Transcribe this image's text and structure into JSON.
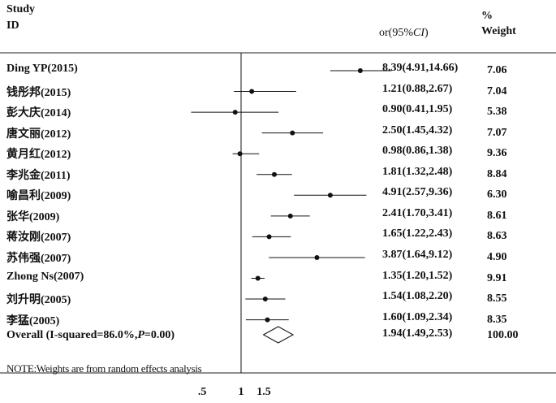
{
  "chart_data": {
    "type": "forest",
    "headers": {
      "study_line1": "Study",
      "study_line2": "ID",
      "effect": "or(95%CI)",
      "weight_line1": "%",
      "weight_line2": "Weight"
    },
    "null_value": 1,
    "x_scale": "log",
    "x_range": [
      0.4,
      14.66
    ],
    "x_ticks": [
      {
        "value": 0.5,
        "label": ".5"
      },
      {
        "value": 1,
        "label": "1"
      },
      {
        "value": 1.5,
        "label": "1.5"
      }
    ],
    "studies": [
      {
        "label": "Ding YP(2015)",
        "or": 8.39,
        "lo": 4.91,
        "hi": 14.66,
        "ci_text": "8.39(4.91,14.66)",
        "weight": "7.06"
      },
      {
        "label": "钱彤邦(2015)",
        "or": 1.21,
        "lo": 0.88,
        "hi": 2.67,
        "ci_text": "1.21(0.88,2.67)",
        "weight": "7.04"
      },
      {
        "label": "彭大庆(2014)",
        "or": 0.9,
        "lo": 0.41,
        "hi": 1.95,
        "ci_text": "0.90(0.41,1.95)",
        "weight": "5.38"
      },
      {
        "label": "唐文丽(2012)",
        "or": 2.5,
        "lo": 1.45,
        "hi": 4.32,
        "ci_text": "2.50(1.45,4.32)",
        "weight": "7.07"
      },
      {
        "label": "黄月红(2012)",
        "or": 0.98,
        "lo": 0.86,
        "hi": 1.38,
        "ci_text": "0.98(0.86,1.38)",
        "weight": "9.36"
      },
      {
        "label": "李兆金(2011)",
        "or": 1.81,
        "lo": 1.32,
        "hi": 2.48,
        "ci_text": "1.81(1.32,2.48)",
        "weight": "8.84"
      },
      {
        "label": "喻昌利(2009)",
        "or": 4.91,
        "lo": 2.57,
        "hi": 9.36,
        "ci_text": "4.91(2.57,9.36)",
        "weight": "6.30"
      },
      {
        "label": "张华(2009)",
        "or": 2.41,
        "lo": 1.7,
        "hi": 3.41,
        "ci_text": "2.41(1.70,3.41)",
        "weight": "8.61"
      },
      {
        "label": "蒋汝刚(2007)",
        "or": 1.65,
        "lo": 1.22,
        "hi": 2.43,
        "ci_text": "1.65(1.22,2.43)",
        "weight": "8.63"
      },
      {
        "label": "苏伟强(2007)",
        "or": 3.87,
        "lo": 1.64,
        "hi": 9.12,
        "ci_text": "3.87(1.64,9.12)",
        "weight": "4.90"
      },
      {
        "label": "Zhong Ns(2007)",
        "or": 1.35,
        "lo": 1.2,
        "hi": 1.52,
        "ci_text": "1.35(1.20,1.52)",
        "weight": "9.91"
      },
      {
        "label": "刘升明(2005)",
        "or": 1.54,
        "lo": 1.08,
        "hi": 2.2,
        "ci_text": "1.54(1.08,2.20)",
        "weight": "8.55"
      },
      {
        "label": "李猛(2005)",
        "or": 1.6,
        "lo": 1.09,
        "hi": 2.34,
        "ci_text": "1.60(1.09,2.34)",
        "weight": "8.35"
      }
    ],
    "overall": {
      "label": "Overall (I-squared=86.0%,P=0.00)",
      "or": 1.94,
      "lo": 1.49,
      "hi": 2.53,
      "ci_text": "1.94(1.49,2.53)",
      "weight": "100.00"
    },
    "note": "NOTE:Weights are from random effects analysis"
  }
}
